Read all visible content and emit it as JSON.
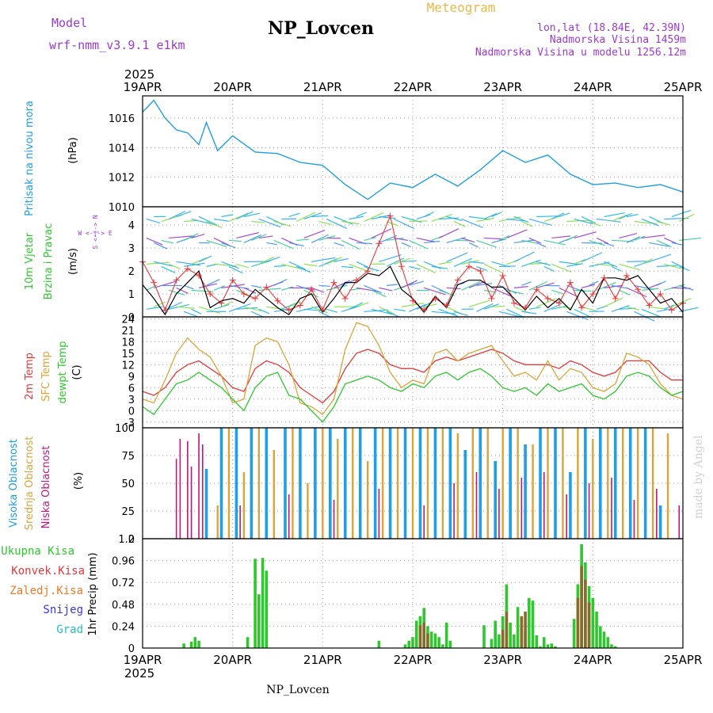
{
  "header": {
    "model_label": "Model",
    "model_name": "wrf-nmm_v3.9.1 e1km",
    "station_title": "NP_Lovcen",
    "meteogram_label": "Meteogram",
    "lonlat": "lon,lat (18.84E, 42.39N)",
    "elevation": "Nadmorska Visina 1459m",
    "model_elevation": "Nadmorska Visina u modelu 1256.12m",
    "year": "2025",
    "footer_title": "NP_Lovcen",
    "watermark": "made by Angel"
  },
  "colors": {
    "pressure": "#1e9fe6",
    "temp2m": "#e8383a",
    "sfc": "#d9a53a",
    "dewpt": "#2ec82e",
    "high_cloud": "#1e9fe6",
    "mid_cloud": "#d9a53a",
    "low_cloud": "#c0157a",
    "total_precip": "#2ec82e",
    "conv_precip": "#e8383a",
    "freezing": "#f07a28",
    "snow": "#3838e0",
    "hail": "#20c0c0",
    "purple_text": "#9a3ad0",
    "gold_text": "#e8b84a"
  },
  "time_axis": {
    "labels": [
      "19APR",
      "20APR",
      "21APR",
      "22APR",
      "23APR",
      "24APR",
      "25APR"
    ],
    "hours": 144
  },
  "panels": {
    "pressure": {
      "ylabel_a": "Pritisak na nivou mora",
      "unit": "(hPa)",
      "ticks": [
        "1016",
        "1014",
        "1012",
        "1010"
      ]
    },
    "wind": {
      "ylabel_a": "10m Vjetar",
      "ylabel_b": "Brzina i Pravac",
      "unit": "(m/s)",
      "ticks": [
        "4",
        "3",
        "2",
        "1",
        "0"
      ],
      "compass": "W <-|-> E",
      "compass_v": "S <-|-> N"
    },
    "temp": {
      "ylabel_a": "2m Temp",
      "ylabel_b": "SFC Temp",
      "ylabel_c": "dewpt Temp",
      "unit": "(C)",
      "ticks": [
        "24",
        "21",
        "18",
        "15",
        "12",
        "9",
        "6",
        "3",
        "0",
        "-3"
      ]
    },
    "cloud": {
      "ylabel_a": "Visoka Oblacnost",
      "ylabel_b": "Srednja Oblacnost",
      "ylabel_c": "Niska Oblacnost",
      "unit": "(%)",
      "ticks": [
        "100",
        "75",
        "50",
        "25",
        "0"
      ]
    },
    "precip": {
      "ylabel": "1hr Precip (mm)",
      "ticks": [
        "1.2",
        "0.96",
        "0.72",
        "0.48",
        "0.24",
        "0"
      ]
    }
  },
  "legend_precip": [
    "Ukupna Kisa",
    "Konvek.Kisa",
    "Zaledj.Kisa",
    "Snijeg",
    "Grad"
  ],
  "chart_data": [
    {
      "type": "line",
      "title": "Pritisak na nivou mora",
      "ylabel": "(hPa)",
      "ylim": [
        1010,
        1017.5
      ],
      "x_hours": [
        0,
        3,
        6,
        9,
        12,
        15,
        17,
        20,
        24,
        30,
        36,
        42,
        48,
        54,
        60,
        66,
        72,
        78,
        84,
        90,
        96,
        102,
        108,
        114,
        120,
        126,
        132,
        138,
        144
      ],
      "series": [
        {
          "values": [
            1016.4,
            1017.2,
            1016.0,
            1015.2,
            1015.0,
            1014.2,
            1015.7,
            1013.8,
            1014.8,
            1013.7,
            1013.6,
            1013.0,
            1012.8,
            1011.5,
            1010.5,
            1011.6,
            1011.3,
            1012.2,
            1011.4,
            1012.5,
            1013.8,
            1013.0,
            1013.5,
            1012.2,
            1011.5,
            1011.6,
            1011.3,
            1011.5,
            1011.0
          ]
        }
      ]
    },
    {
      "type": "line",
      "title": "10m Vjetar Brzina i Pravac",
      "ylabel": "(m/s)",
      "ylim": [
        0,
        4.8
      ],
      "x_hours": [
        0,
        3,
        6,
        9,
        12,
        15,
        18,
        21,
        24,
        27,
        30,
        33,
        36,
        39,
        42,
        45,
        48,
        51,
        54,
        57,
        60,
        63,
        66,
        69,
        72,
        75,
        78,
        81,
        84,
        87,
        90,
        93,
        96,
        99,
        102,
        105,
        108,
        111,
        114,
        117,
        120,
        123,
        126,
        129,
        132,
        135,
        138,
        141,
        144
      ],
      "series": [
        {
          "values": [
            2.4,
            1.5,
            0.3,
            1.6,
            2.1,
            1.8,
            1.0,
            0.6,
            1.6,
            1.0,
            0.8,
            1.3,
            0.7,
            0.3,
            0.5,
            1.2,
            0.3,
            1.5,
            0.8,
            1.6,
            2.0,
            3.2,
            4.4,
            2.2,
            0.7,
            0.3,
            0.8,
            0.5,
            1.6,
            2.2,
            2.0,
            0.8,
            1.8,
            0.6,
            0.4,
            1.2,
            0.8,
            0.6,
            1.5,
            0.4,
            1.0,
            1.7,
            0.8,
            1.8,
            1.2,
            0.5,
            1.0,
            0.3,
            0.6
          ]
        },
        {
          "values": [
            1.4,
            0.8,
            0.1,
            1.0,
            1.5,
            2.0,
            0.4,
            0.7,
            0.8,
            0.6,
            1.2,
            0.8,
            0.4,
            0.1,
            0.8,
            1.0,
            0.2,
            0.8,
            1.5,
            1.5,
            1.9,
            1.8,
            2.2,
            1.2,
            0.8,
            0.2,
            0.9,
            0.4,
            1.4,
            1.6,
            1.6,
            1.3,
            1.3,
            0.8,
            0.3,
            0.9,
            0.4,
            0.8,
            0.3,
            1.2,
            0.6,
            1.7,
            1.7,
            1.6,
            1.8,
            1.2,
            0.6,
            0.8,
            0.2
          ]
        }
      ]
    },
    {
      "type": "line",
      "title": "2m Temp / SFC Temp / dewpt Temp",
      "ylabel": "(C)",
      "ylim": [
        -4.5,
        24.5
      ],
      "x_hours": [
        0,
        3,
        6,
        9,
        12,
        15,
        18,
        21,
        24,
        27,
        30,
        33,
        36,
        39,
        42,
        45,
        48,
        51,
        54,
        57,
        60,
        63,
        66,
        69,
        72,
        75,
        78,
        81,
        84,
        87,
        90,
        93,
        96,
        99,
        102,
        105,
        108,
        111,
        114,
        117,
        120,
        123,
        126,
        129,
        132,
        135,
        138,
        141,
        144
      ],
      "series": [
        {
          "name": "2m Temp",
          "values": [
            5,
            4,
            6,
            10,
            12,
            13,
            11,
            9,
            6,
            5,
            11,
            13,
            12,
            10,
            6,
            4,
            2,
            5,
            11,
            15,
            16,
            15,
            12,
            11,
            11,
            10,
            13,
            14,
            13,
            14,
            15,
            16,
            15,
            13,
            12,
            12,
            12,
            11,
            13,
            12,
            10,
            9,
            10,
            13,
            13,
            13,
            10,
            8,
            8
          ]
        },
        {
          "name": "SFC Temp",
          "values": [
            3,
            2,
            8,
            15,
            19,
            16,
            14,
            9,
            2,
            3,
            17,
            19,
            18,
            12,
            2,
            1,
            -1,
            3,
            16,
            23,
            22,
            17,
            10,
            6,
            8,
            7,
            15,
            16,
            13,
            15,
            16,
            17,
            13,
            9,
            10,
            8,
            13,
            8,
            11,
            10,
            6,
            5,
            7,
            15,
            14,
            12,
            7,
            4,
            3
          ]
        },
        {
          "name": "dewpt Temp",
          "values": [
            1,
            -1,
            3,
            7,
            8,
            10,
            8,
            6,
            3,
            0,
            6,
            9,
            10,
            4,
            3,
            0,
            -3,
            1,
            7,
            8,
            9,
            8,
            6,
            5,
            7,
            6,
            9,
            10,
            8,
            10,
            11,
            9,
            6,
            5,
            6,
            4,
            7,
            5,
            6,
            7,
            4,
            3,
            5,
            9,
            10,
            9,
            6,
            4,
            5
          ]
        }
      ]
    },
    {
      "type": "bar",
      "title": "Oblacnost",
      "ylabel": "(%)",
      "ylim": [
        0,
        100
      ],
      "series": [
        {
          "name": "Visoka Oblacnost",
          "x_hours": [
            8,
            17,
            21,
            25,
            29,
            33,
            38,
            42,
            46,
            50,
            54,
            58,
            62,
            66,
            70,
            74,
            78,
            82,
            86,
            90,
            94,
            98,
            102,
            106,
            110,
            114,
            118,
            122,
            126,
            130,
            134,
            138
          ],
          "values": [
            0,
            63,
            100,
            100,
            100,
            100,
            100,
            100,
            100,
            100,
            100,
            100,
            100,
            100,
            100,
            100,
            100,
            100,
            80,
            100,
            70,
            100,
            85,
            100,
            100,
            60,
            100,
            100,
            100,
            100,
            100,
            30
          ]
        },
        {
          "name": "Srednja Oblacnost",
          "x_hours": [
            20,
            23,
            27,
            31,
            35,
            40,
            44,
            48,
            52,
            56,
            60,
            64,
            68,
            72,
            76,
            80,
            84,
            88,
            92,
            96,
            100,
            104,
            108,
            112,
            116,
            120,
            124,
            128,
            132,
            136,
            140
          ],
          "values": [
            30,
            100,
            60,
            100,
            80,
            100,
            50,
            100,
            90,
            100,
            70,
            100,
            100,
            100,
            100,
            100,
            95,
            100,
            100,
            100,
            100,
            85,
            100,
            100,
            100,
            90,
            100,
            100,
            100,
            100,
            95
          ]
        },
        {
          "name": "Niska Oblacnost",
          "x_hours": [
            9,
            10,
            12,
            13,
            15,
            16,
            26,
            39,
            51,
            63,
            75,
            83,
            89,
            95,
            101,
            107,
            113,
            119,
            125,
            131,
            137,
            143
          ],
          "values": [
            72,
            90,
            88,
            65,
            95,
            85,
            30,
            40,
            35,
            45,
            30,
            50,
            60,
            45,
            55,
            60,
            40,
            50,
            55,
            35,
            45,
            30
          ]
        }
      ]
    },
    {
      "type": "bar",
      "title": "1hr Precip",
      "ylabel": "(mm)",
      "ylim": [
        0,
        1.2
      ],
      "series": [
        {
          "name": "Ukupna Kisa",
          "x_hours": [
            11,
            13,
            14,
            15,
            28,
            30,
            31,
            32,
            33,
            63,
            70,
            71,
            72,
            73,
            74,
            75,
            76,
            77,
            78,
            79,
            80,
            81,
            82,
            91,
            93,
            94,
            95,
            96,
            97,
            98,
            99,
            100,
            101,
            102,
            103,
            104,
            105,
            106,
            107,
            108,
            109,
            110,
            115,
            116,
            117,
            118,
            119,
            120,
            121,
            122,
            123,
            124,
            125,
            126
          ],
          "values": [
            0.05,
            0.07,
            0.12,
            0.08,
            0.12,
            0.98,
            0.59,
            0.99,
            0.85,
            0.08,
            0.04,
            0.08,
            0.12,
            0.3,
            0.35,
            0.44,
            0.24,
            0.18,
            0.16,
            0.12,
            0.04,
            0.28,
            0.08,
            0.25,
            0.1,
            0.3,
            0.15,
            0.35,
            0.7,
            0.28,
            0.15,
            0.45,
            0.32,
            0.2,
            0.55,
            0.52,
            0.14,
            0.02,
            0.12,
            0.04,
            0.05,
            0.02,
            0.32,
            0.7,
            1.14,
            0.94,
            0.68,
            0.55,
            0.4,
            0.24,
            0.18,
            0.12,
            0.04,
            0.02
          ]
        },
        {
          "name": "Konvek.Kisa",
          "x_hours": [
            74,
            75,
            76,
            96,
            97,
            101,
            102,
            116,
            117,
            118,
            119
          ],
          "values": [
            0.25,
            0.28,
            0.16,
            0.2,
            0.4,
            0.35,
            0.4,
            0.55,
            0.9,
            0.75,
            0.5
          ]
        }
      ]
    }
  ]
}
